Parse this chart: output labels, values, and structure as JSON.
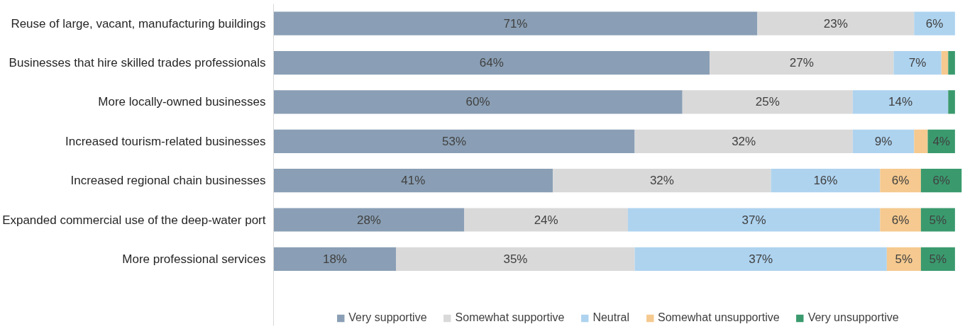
{
  "chart_data": {
    "type": "bar",
    "orientation": "horizontal",
    "stacked": true,
    "categories": [
      "Reuse of large, vacant, manufacturing buildings",
      "Businesses that hire skilled trades professionals",
      "More locally-owned businesses",
      "Increased tourism-related businesses",
      "Increased regional chain businesses",
      "Expanded commercial use of the deep-water port",
      "More professional services"
    ],
    "series": [
      {
        "name": "Very supportive",
        "color": "#8a9fb5",
        "values": [
          71,
          64,
          60,
          53,
          41,
          28,
          18
        ],
        "value_labels": [
          "71%",
          "64%",
          "60%",
          "53%",
          "41%",
          "28%",
          "18%"
        ]
      },
      {
        "name": "Somewhat supportive",
        "color": "#d9d9d9",
        "values": [
          23,
          27,
          25,
          32,
          32,
          24,
          35
        ],
        "value_labels": [
          "23%",
          "27%",
          "25%",
          "32%",
          "32%",
          "24%",
          "35%"
        ]
      },
      {
        "name": "Neutral",
        "color": "#aed3ef",
        "values": [
          6,
          7,
          14,
          9,
          16,
          37,
          37
        ],
        "value_labels": [
          "6%",
          "7%",
          "14%",
          "9%",
          "16%",
          "37%",
          "37%"
        ]
      },
      {
        "name": "Somewhat unsupportive",
        "color": "#f5c98f",
        "values": [
          null,
          1,
          null,
          2,
          6,
          6,
          5
        ],
        "value_labels": [
          null,
          null,
          null,
          null,
          "6%",
          "6%",
          "5%"
        ]
      },
      {
        "name": "Very unsupportive",
        "color": "#3a9a6e",
        "values": [
          null,
          1,
          1,
          4,
          6,
          5,
          5
        ],
        "value_labels": [
          null,
          null,
          null,
          "4%",
          "6%",
          "5%",
          "5%"
        ]
      }
    ],
    "xlim": [
      0,
      101
    ],
    "tick_labels": "y",
    "grid": false,
    "legend": "bottom"
  }
}
